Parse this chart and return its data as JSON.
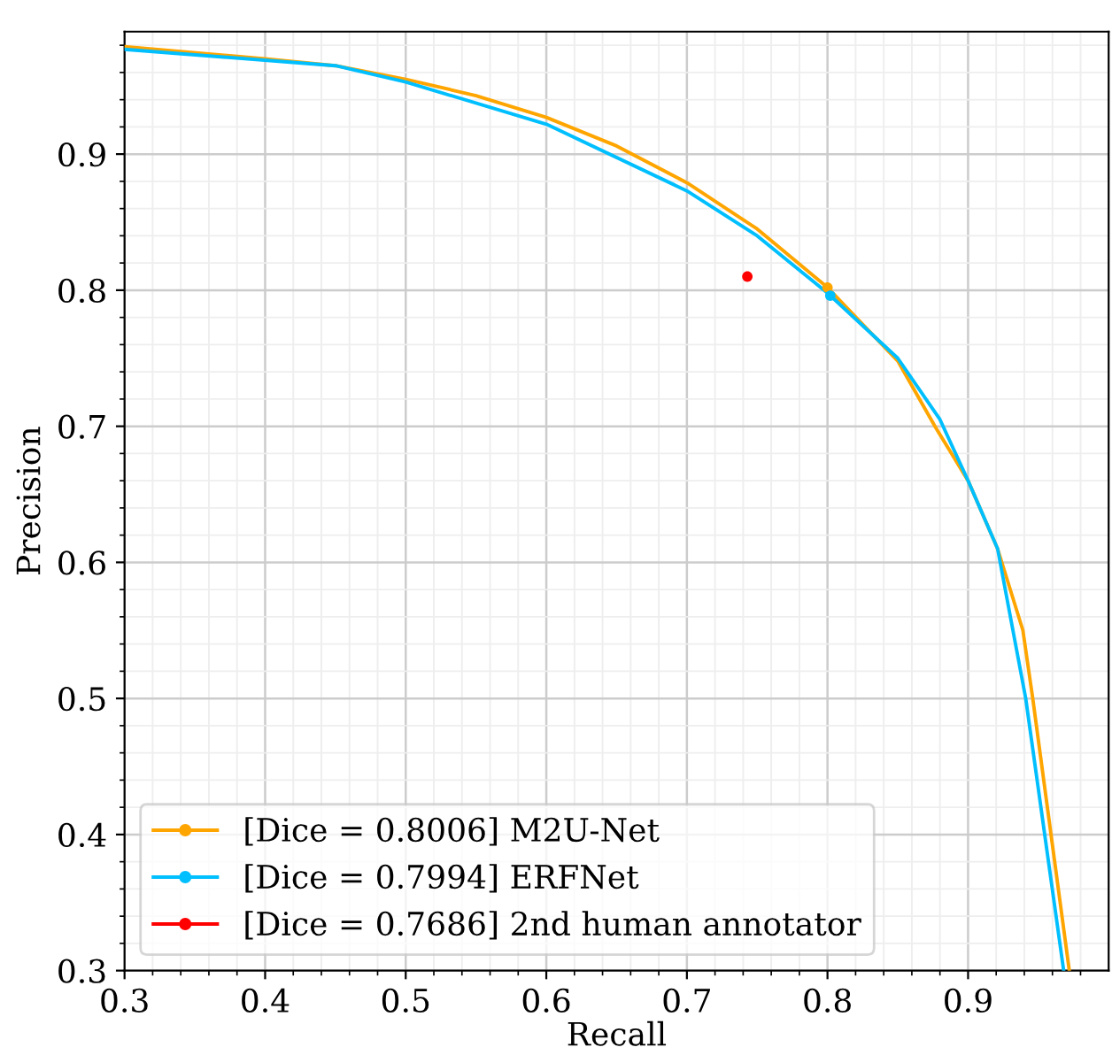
{
  "chart_data": {
    "type": "line",
    "xlabel": "Recall",
    "ylabel": "Precision",
    "xlim": [
      0.3,
      1.0
    ],
    "ylim": [
      0.3,
      0.99
    ],
    "xticks": [
      0.3,
      0.4,
      0.5,
      0.6,
      0.7,
      0.8,
      0.9
    ],
    "yticks": [
      0.3,
      0.4,
      0.5,
      0.6,
      0.7,
      0.8,
      0.9
    ],
    "grid": true,
    "legend": "bottom left",
    "series": [
      {
        "name": "[Dice = 0.8006] M2U-Net",
        "color": "#ffa500",
        "x": [
          0.3,
          0.4,
          0.45,
          0.5,
          0.55,
          0.6,
          0.65,
          0.7,
          0.75,
          0.8,
          0.85,
          0.877,
          0.9,
          0.921,
          0.939,
          0.946,
          0.972
        ],
        "values": [
          0.979,
          0.97,
          0.965,
          0.955,
          0.943,
          0.927,
          0.906,
          0.879,
          0.845,
          0.802,
          0.748,
          0.699,
          0.66,
          0.61,
          0.55,
          0.5,
          0.3
        ]
      },
      {
        "name": "[Dice = 0.7994] ERFNet",
        "color": "#00bfff",
        "x": [
          0.3,
          0.45,
          0.5,
          0.6,
          0.7,
          0.75,
          0.8,
          0.85,
          0.88,
          0.9,
          0.921,
          0.941,
          0.968
        ],
        "values": [
          0.977,
          0.965,
          0.953,
          0.922,
          0.873,
          0.84,
          0.798,
          0.75,
          0.705,
          0.66,
          0.61,
          0.5,
          0.3
        ]
      },
      {
        "name": "[Dice = 0.7686] 2nd human annotator",
        "color": "#ff0000",
        "type": "scatter",
        "marker": "circle",
        "x": [
          0.743
        ],
        "values": [
          0.81
        ]
      },
      {
        "type": "scatter",
        "marker": "circle",
        "color": "#ffa500",
        "x": [
          0.8
        ],
        "values": [
          0.802
        ]
      },
      {
        "type": "scatter",
        "marker": "circle",
        "color": "#00bfff",
        "x": [
          0.802
        ],
        "values": [
          0.796
        ]
      }
    ]
  }
}
